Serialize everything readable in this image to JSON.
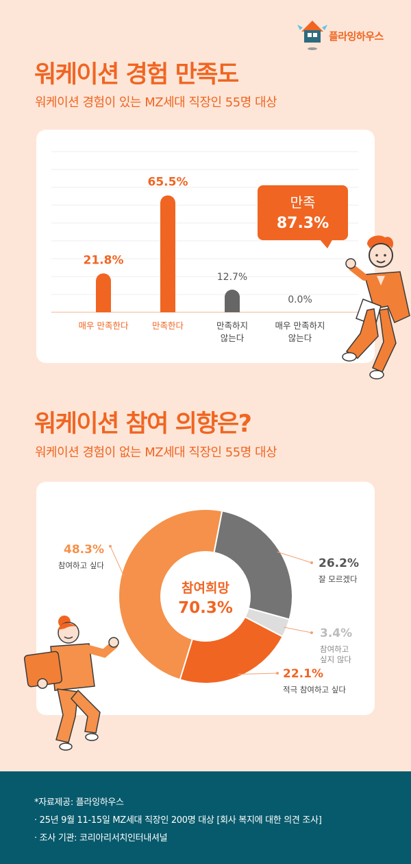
{
  "brand": {
    "name": "플라잉하우스"
  },
  "section1": {
    "title": "워케이션 경험 만족도",
    "subtitle": "워케이션 경험이 있는 MZ세대 직장인 55명 대상",
    "callout": {
      "label": "만족",
      "value": "87.3%"
    }
  },
  "section2": {
    "title": "워케이션 참여 의향은?",
    "subtitle": "워케이션 경험이 없는 MZ세대 직장인 55명 대상",
    "center": {
      "label": "참여희망",
      "value": "70.3%"
    }
  },
  "footer": {
    "source": "*자료제공: 플라잉하우스",
    "survey": "· 25년 9월 11-15일 MZ세대 직장인 200명 대상 [회사 복지에 대한 의견 조사]",
    "agency": "· 조사 기관: 코리아리서치인터내셔널"
  },
  "colors": {
    "accent": "#f06522",
    "light_orange": "#f5914a",
    "dark_gray": "#666666",
    "light_gray": "#dddddd",
    "footer_bg": "#075a6c"
  },
  "chart_data": [
    {
      "type": "bar",
      "categories": [
        "매우 만족한다",
        "만족한다",
        "만족하지 않는다",
        "매우 만족하지 않는다"
      ],
      "category_lines": [
        [
          "매우 만족한다"
        ],
        [
          "만족한다"
        ],
        [
          "만족하지",
          "않는다"
        ],
        [
          "매우 만족하지",
          "않는다"
        ]
      ],
      "values": [
        21.8,
        65.5,
        12.7,
        0.0
      ],
      "data_labels": [
        "21.8%",
        "65.5%",
        "12.7%",
        "0.0%"
      ],
      "colors": [
        "#f06522",
        "#f06522",
        "#666666",
        "#666666"
      ],
      "ylim": [
        0,
        100
      ],
      "grid": true
    },
    {
      "type": "pie",
      "slices": [
        {
          "label": "잘 모르겠다",
          "label_lines": [
            "잘 모르겠다"
          ],
          "value": 26.2,
          "text": "26.2%",
          "color": "#747474"
        },
        {
          "label": "참여하고 싶지 않다",
          "label_lines": [
            "참여하고",
            "싶지 않다"
          ],
          "value": 3.4,
          "text": "3.4%",
          "color": "#dddddd"
        },
        {
          "label": "적극 참여하고 싶다",
          "label_lines": [
            "적극 참여하고 싶다"
          ],
          "value": 22.1,
          "text": "22.1%",
          "color": "#f06522"
        },
        {
          "label": "참여하고 싶다",
          "label_lines": [
            "참여하고 싶다"
          ],
          "value": 48.3,
          "text": "48.3%",
          "color": "#f5914a"
        }
      ]
    }
  ]
}
